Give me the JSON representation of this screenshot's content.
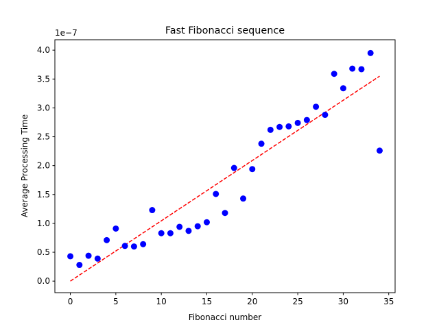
{
  "chart_data": {
    "type": "scatter",
    "title": "Fast Fibonacci sequence",
    "xlabel": "Fibonacci number",
    "ylabel": "Average Processing Time",
    "y_scale_label": "1e−7",
    "xlim": [
      -1.7,
      35.7
    ],
    "ylim": [
      -0.2,
      4.18
    ],
    "x_ticks": [
      0,
      5,
      10,
      15,
      20,
      25,
      30,
      35
    ],
    "y_ticks": [
      0.0,
      0.5,
      1.0,
      1.5,
      2.0,
      2.5,
      3.0,
      3.5,
      4.0
    ],
    "grid": false,
    "series": [
      {
        "kind": "points",
        "color": "#0000ff",
        "x": [
          0,
          1,
          2,
          3,
          4,
          5,
          6,
          7,
          8,
          9,
          10,
          11,
          12,
          13,
          14,
          15,
          16,
          17,
          18,
          19,
          20,
          21,
          22,
          23,
          24,
          25,
          26,
          27,
          28,
          29,
          30,
          31,
          32,
          33,
          34
        ],
        "y": [
          0.43,
          0.28,
          0.44,
          0.39,
          0.71,
          0.91,
          0.61,
          0.6,
          0.64,
          1.23,
          0.83,
          0.83,
          0.94,
          0.87,
          0.95,
          1.02,
          1.51,
          1.18,
          1.96,
          1.43,
          1.94,
          2.38,
          2.62,
          2.67,
          2.68,
          2.74,
          2.79,
          3.02,
          2.88,
          3.59,
          3.34,
          3.68,
          3.67,
          3.95,
          2.26
        ]
      },
      {
        "kind": "trend",
        "color": "#ff0000",
        "x": [
          0,
          34
        ],
        "y": [
          0.0,
          3.55
        ]
      }
    ]
  }
}
